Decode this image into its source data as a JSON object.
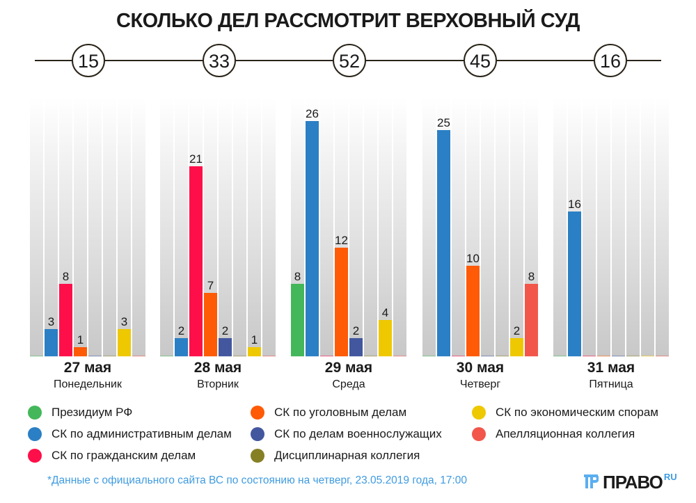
{
  "title": "СКОЛЬКО ДЕЛ РАССМОТРИТ ВЕРХОВНЫЙ СУД",
  "chart_data": {
    "type": "bar",
    "title": "СКОЛЬКО ДЕЛ РАССМОТРИТ ВЕРХОВНЫЙ СУД",
    "categories": [
      {
        "date": "27 мая",
        "weekday": "Понедельник",
        "total": "15"
      },
      {
        "date": "28 мая",
        "weekday": "Вторник",
        "total": "33"
      },
      {
        "date": "29 мая",
        "weekday": "Среда",
        "total": "52"
      },
      {
        "date": "30 мая",
        "weekday": "Четверг",
        "total": "45"
      },
      {
        "date": "31 мая",
        "weekday": "Пятница",
        "total": "16"
      }
    ],
    "series": [
      {
        "name": "Президиум РФ",
        "color": "#43b75a",
        "values": [
          0,
          0,
          8,
          0,
          0
        ]
      },
      {
        "name": "СК по административным делам",
        "color": "#2b7fc4",
        "values": [
          3,
          2,
          26,
          25,
          16
        ]
      },
      {
        "name": "СК по гражданским делам",
        "color": "#ff0f4a",
        "values": [
          8,
          21,
          0,
          0,
          0
        ]
      },
      {
        "name": "СК по уголовным делам",
        "color": "#ff5a05",
        "values": [
          1,
          7,
          12,
          10,
          0
        ]
      },
      {
        "name": "СК по делам военнослужащих",
        "color": "#43579e",
        "values": [
          0,
          2,
          2,
          0,
          0
        ]
      },
      {
        "name": "Дисциплинарная коллегия",
        "color": "#868025",
        "values": [
          0,
          0,
          0,
          0,
          0
        ]
      },
      {
        "name": "СК по экономическим спорам",
        "color": "#eec800",
        "values": [
          3,
          1,
          4,
          2,
          0
        ]
      },
      {
        "name": "Апелляционная коллегия",
        "color": "#f2564a",
        "values": [
          0,
          0,
          0,
          8,
          0
        ]
      }
    ],
    "ylim": [
      0,
      26
    ],
    "grid": false,
    "legend": "bottom"
  },
  "footnote": "*Данные с официального сайта ВС по состоянию на четверг, 23.05.2019 года, 17:00",
  "logo": {
    "text": "ПРАВО",
    "suffix": "RU"
  }
}
